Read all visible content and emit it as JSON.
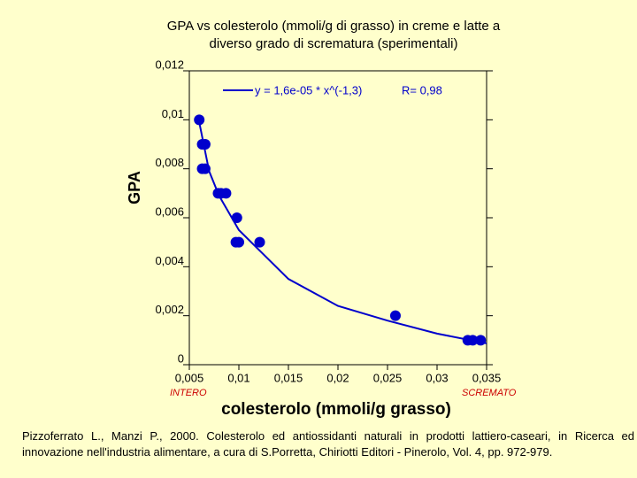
{
  "chart_data": {
    "type": "scatter",
    "title": [
      "GPA vs colesterolo (mmoli/g di grasso) in creme e latte a",
      "diverso grado di scrematura (sperimentali)"
    ],
    "xlabel": "colesterolo (mmoli/g grasso)",
    "ylabel": "GPA",
    "annotations": {
      "left": "INTERO",
      "right": "SCREMATO",
      "r": "R= 0,98"
    },
    "annotation_color": "#cc0000",
    "citation": "Pizzoferrato L., Manzi P., 2000. Colesterolo ed antiossidanti naturali in prodotti lattiero-caseari, in Ricerca ed innovazione nell'industria alimentare, a cura di S.Porretta, Chiriotti Editori - Pinerolo, Vol. 4, pp. 972-979.",
    "xlim": [
      0.005,
      0.035
    ],
    "ylim": [
      0,
      0.012
    ],
    "xticks": [
      {
        "value": 0.005,
        "label": "0,005"
      },
      {
        "value": 0.01,
        "label": "0,01"
      },
      {
        "value": 0.015,
        "label": "0,015"
      },
      {
        "value": 0.02,
        "label": "0,02"
      },
      {
        "value": 0.025,
        "label": "0,025"
      },
      {
        "value": 0.03,
        "label": "0,03"
      },
      {
        "value": 0.035,
        "label": "0,035"
      }
    ],
    "yticks": [
      0,
      {
        "value": 0.002,
        "label": "0,002"
      },
      {
        "value": 0.004,
        "label": "0,004"
      },
      {
        "value": 0.006,
        "label": "0,006"
      },
      {
        "value": 0.008,
        "label": "0,008"
      },
      {
        "value": 0.01,
        "label": "0,01"
      },
      {
        "value": 0.012,
        "label": "0,012"
      }
    ],
    "points": {
      "color": "#0000cc",
      "x": [
        0.006,
        0.0063,
        0.0066,
        0.0063,
        0.0066,
        0.0079,
        0.0082,
        0.0087,
        0.0098,
        0.0097,
        0.01,
        0.0121,
        0.0258,
        0.0331,
        0.0336,
        0.0344
      ],
      "values": [
        0.01,
        0.009,
        0.009,
        0.008,
        0.008,
        0.007,
        0.007,
        0.007,
        0.006,
        0.005,
        0.005,
        0.005,
        0.002,
        0.001,
        0.001,
        0.001
      ]
    },
    "fit": {
      "label": "y = 1,6e-05 * x^(-1,3)",
      "color": "#0000cc",
      "x": [
        0.006,
        0.007,
        0.008,
        0.01,
        0.015,
        0.02,
        0.025,
        0.03,
        0.035
      ],
      "values": [
        0.0099,
        0.0079,
        0.0069,
        0.0055,
        0.0035,
        0.0024,
        0.0018,
        0.00127,
        0.00087
      ]
    }
  }
}
